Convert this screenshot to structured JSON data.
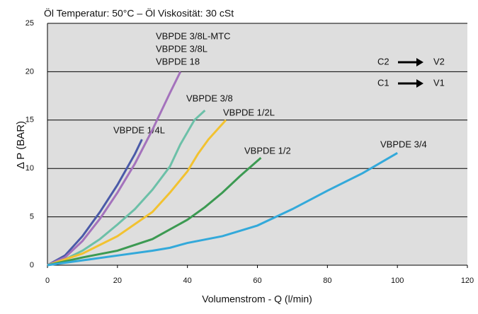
{
  "chart_data": {
    "type": "line",
    "title": "Öl Temperatur: 50°C – Öl Viskosität: 30 cSt",
    "x_label": "Volumenstrom - Q (l/min)",
    "y_label": "Δ P (BAR)",
    "xlim": [
      0,
      120
    ],
    "xticks": [
      0,
      20,
      40,
      60,
      80,
      100,
      120
    ],
    "ylim": [
      0,
      25
    ],
    "yticks": [
      0,
      5,
      10,
      15,
      20,
      25
    ],
    "grid": true,
    "series": [
      {
        "name": "VBPDE 1/4L",
        "color": "#4a5aa8",
        "x": [
          0,
          5,
          10,
          15,
          20,
          25,
          27
        ],
        "values": [
          0,
          1,
          3,
          5.5,
          8.3,
          11.5,
          13
        ]
      },
      {
        "name": "VBPDE 3/8L-MTC",
        "color": "#a472bc",
        "x": [
          0,
          5,
          10,
          15,
          20,
          25,
          30,
          35,
          38
        ],
        "values": [
          0,
          0.8,
          2.5,
          4.8,
          7.5,
          10.5,
          14,
          17.8,
          20
        ]
      },
      {
        "name": "VBPDE 3/8",
        "color": "#6cc0a8",
        "x": [
          0,
          5,
          10,
          15,
          20,
          25,
          30,
          35,
          38,
          42,
          45
        ],
        "values": [
          0,
          0.6,
          1.5,
          2.7,
          4.2,
          5.8,
          7.8,
          10.2,
          12.5,
          15,
          16
        ]
      },
      {
        "name": "VBPDE 1/2L",
        "color": "#f2c230",
        "x": [
          0,
          10,
          20,
          30,
          35,
          40,
          43,
          46,
          51
        ],
        "values": [
          0,
          1.2,
          3,
          5.5,
          7.5,
          9.7,
          11.5,
          13,
          15
        ]
      },
      {
        "name": "VBPDE 1/2",
        "color": "#3c9a52",
        "x": [
          0,
          10,
          20,
          30,
          40,
          45,
          50,
          55,
          61
        ],
        "values": [
          0,
          0.8,
          1.5,
          2.7,
          4.7,
          6,
          7.5,
          9.2,
          11.1
        ]
      },
      {
        "name": "VBPDE 3/4",
        "color": "#33a9da",
        "x": [
          0,
          10,
          20,
          30,
          35,
          40,
          50,
          60,
          70,
          80,
          90,
          100
        ],
        "values": [
          0,
          0.5,
          1,
          1.5,
          1.8,
          2.3,
          3,
          4.1,
          5.8,
          7.7,
          9.5,
          11.6
        ]
      }
    ],
    "annotations": [
      "VBPDE 3/8L",
      "VBPDE 18",
      "C2",
      "V2",
      "C1",
      "V1"
    ]
  }
}
